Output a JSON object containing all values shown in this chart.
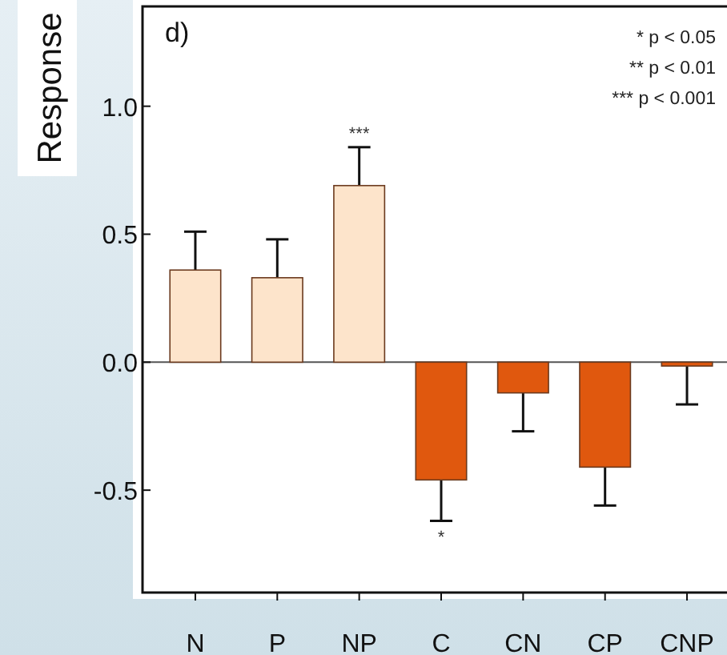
{
  "chart_data": {
    "type": "bar",
    "title": "d)",
    "ylabel": "Response",
    "categories": [
      "N",
      "P",
      "NP",
      "C",
      "CN",
      "CP",
      "CNP"
    ],
    "values": [
      0.36,
      0.33,
      0.69,
      -0.46,
      -0.12,
      -0.41,
      -0.015
    ],
    "colors": [
      "#fde4cb",
      "#fde4cb",
      "#fde4cb",
      "#e0580e",
      "#e0580e",
      "#e0580e",
      "#e0580e"
    ],
    "errors": [
      [
        0.36,
        0.51
      ],
      [
        0.33,
        0.48
      ],
      [
        0.69,
        0.84
      ],
      [
        -0.62,
        -0.46
      ],
      [
        -0.27,
        -0.12
      ],
      [
        -0.56,
        -0.41
      ],
      [
        -0.165,
        -0.015
      ]
    ],
    "ylim": [
      -0.9,
      1.39
    ],
    "yticks": [
      -0.5,
      {
        "value": 0,
        "label": "0.0"
      },
      0.5,
      {
        "value": 1,
        "label": "1.0"
      }
    ],
    "annotations": [
      "***",
      "*",
      "* p < 0.05",
      "** p < 0.01",
      "*** p < 0.001"
    ]
  }
}
